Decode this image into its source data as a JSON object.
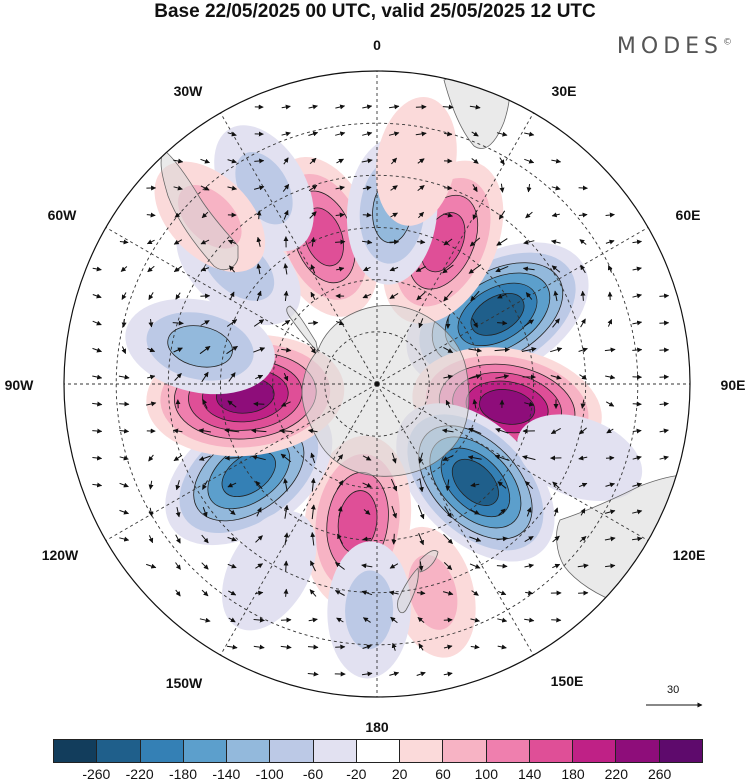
{
  "title": "Base 22/05/2025 00 UTC, valid 25/05/2025 12 UTC",
  "brand": "MODES",
  "brand_mark": "©",
  "longitude_labels": {
    "lon_0": "0",
    "lon_30e": "30E",
    "lon_60e": "60E",
    "lon_90e": "90E",
    "lon_120e": "120E",
    "lon_150e": "150E",
    "lon_180": "180",
    "lon_150w": "150W",
    "lon_120w": "120W",
    "lon_90w": "90W",
    "lon_60w": "60W",
    "lon_30w": "30W"
  },
  "reference_vector": {
    "label": "30",
    "icon": "arrow-right-icon"
  },
  "colorbar": {
    "colors": [
      "#123d5c",
      "#1f5f8b",
      "#3480b5",
      "#5c9fcc",
      "#93b9dc",
      "#bcc9e6",
      "#e2e1f1",
      "#ffffff",
      "#fbdada",
      "#f7b3c4",
      "#ef7fae",
      "#df4f97",
      "#bf2186",
      "#8e0d7a",
      "#5e0a6c"
    ],
    "tick_labels": [
      "-260",
      "-220",
      "-180",
      "-140",
      "-100",
      "-60",
      "-20",
      "20",
      "60",
      "100",
      "140",
      "180",
      "220",
      "260"
    ]
  },
  "anomaly_centers": [
    {
      "name": "neg-60e",
      "lon": 60,
      "lat": -50,
      "value": -240
    },
    {
      "name": "pos-100e",
      "lon": 100,
      "lat": -52,
      "value": 220
    },
    {
      "name": "neg-135e",
      "lon": 135,
      "lat": -50,
      "value": -220
    },
    {
      "name": "pos-175w",
      "lon": -172,
      "lat": -50,
      "value": 170
    },
    {
      "name": "neg-125w",
      "lon": -125,
      "lat": -45,
      "value": -210
    },
    {
      "name": "pos-95w",
      "lon": -95,
      "lat": -52,
      "value": 240
    },
    {
      "name": "neg-80w",
      "lon": -78,
      "lat": -38,
      "value": -110
    },
    {
      "name": "pos-20w",
      "lon": -20,
      "lat": -45,
      "value": 150
    },
    {
      "name": "pos-25e",
      "lon": 25,
      "lat": -45,
      "value": 170
    },
    {
      "name": "neg-5e",
      "lon": 5,
      "lat": -40,
      "value": -100
    },
    {
      "name": "neg-50w",
      "lon": -50,
      "lat": -38,
      "value": -90
    },
    {
      "name": "neg-30w",
      "lon": -30,
      "lat": -25,
      "value": -70
    },
    {
      "name": "pos-40w",
      "lon": -45,
      "lat": -22,
      "value": 60
    },
    {
      "name": "pos-170e",
      "lon": 165,
      "lat": -28,
      "value": 60
    },
    {
      "name": "neg-178w",
      "lon": -178,
      "lat": -25,
      "value": -70
    },
    {
      "name": "neg-150w",
      "lon": -150,
      "lat": -28,
      "value": -50
    },
    {
      "name": "pos-10e",
      "lon": 10,
      "lat": -25,
      "value": 50
    },
    {
      "name": "neg-100e",
      "lon": 110,
      "lat": -28,
      "value": -50
    }
  ]
}
